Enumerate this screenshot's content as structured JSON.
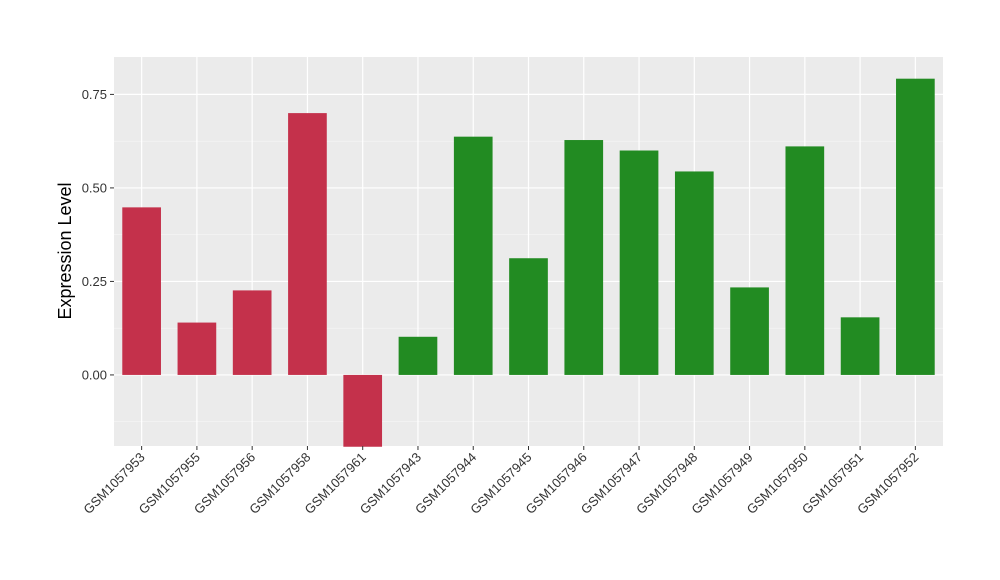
{
  "chart_data": {
    "type": "bar",
    "title": "",
    "xlabel": "",
    "ylabel": "Expression Level",
    "ylim": [
      -0.19,
      0.85
    ],
    "yticks": [
      0.0,
      0.25,
      0.5,
      0.75
    ],
    "ytick_labels": [
      "0.00",
      "0.25",
      "0.50",
      "0.75"
    ],
    "grid": true,
    "background": "#ebebeb",
    "categories": [
      "GSM1057953",
      "GSM1057955",
      "GSM1057956",
      "GSM1057958",
      "GSM1057961",
      "GSM1057943",
      "GSM1057944",
      "GSM1057945",
      "GSM1057946",
      "GSM1057947",
      "GSM1057948",
      "GSM1057949",
      "GSM1057950",
      "GSM1057951",
      "GSM1057952"
    ],
    "values": [
      0.448,
      0.14,
      0.226,
      0.7,
      -0.192,
      0.102,
      0.637,
      0.312,
      0.628,
      0.6,
      0.544,
      0.234,
      0.611,
      0.154,
      0.792
    ],
    "groups": [
      "red",
      "red",
      "red",
      "red",
      "red",
      "green",
      "green",
      "green",
      "green",
      "green",
      "green",
      "green",
      "green",
      "green",
      "green"
    ],
    "colors": {
      "red": "#c4314b",
      "green": "#228b22"
    }
  }
}
